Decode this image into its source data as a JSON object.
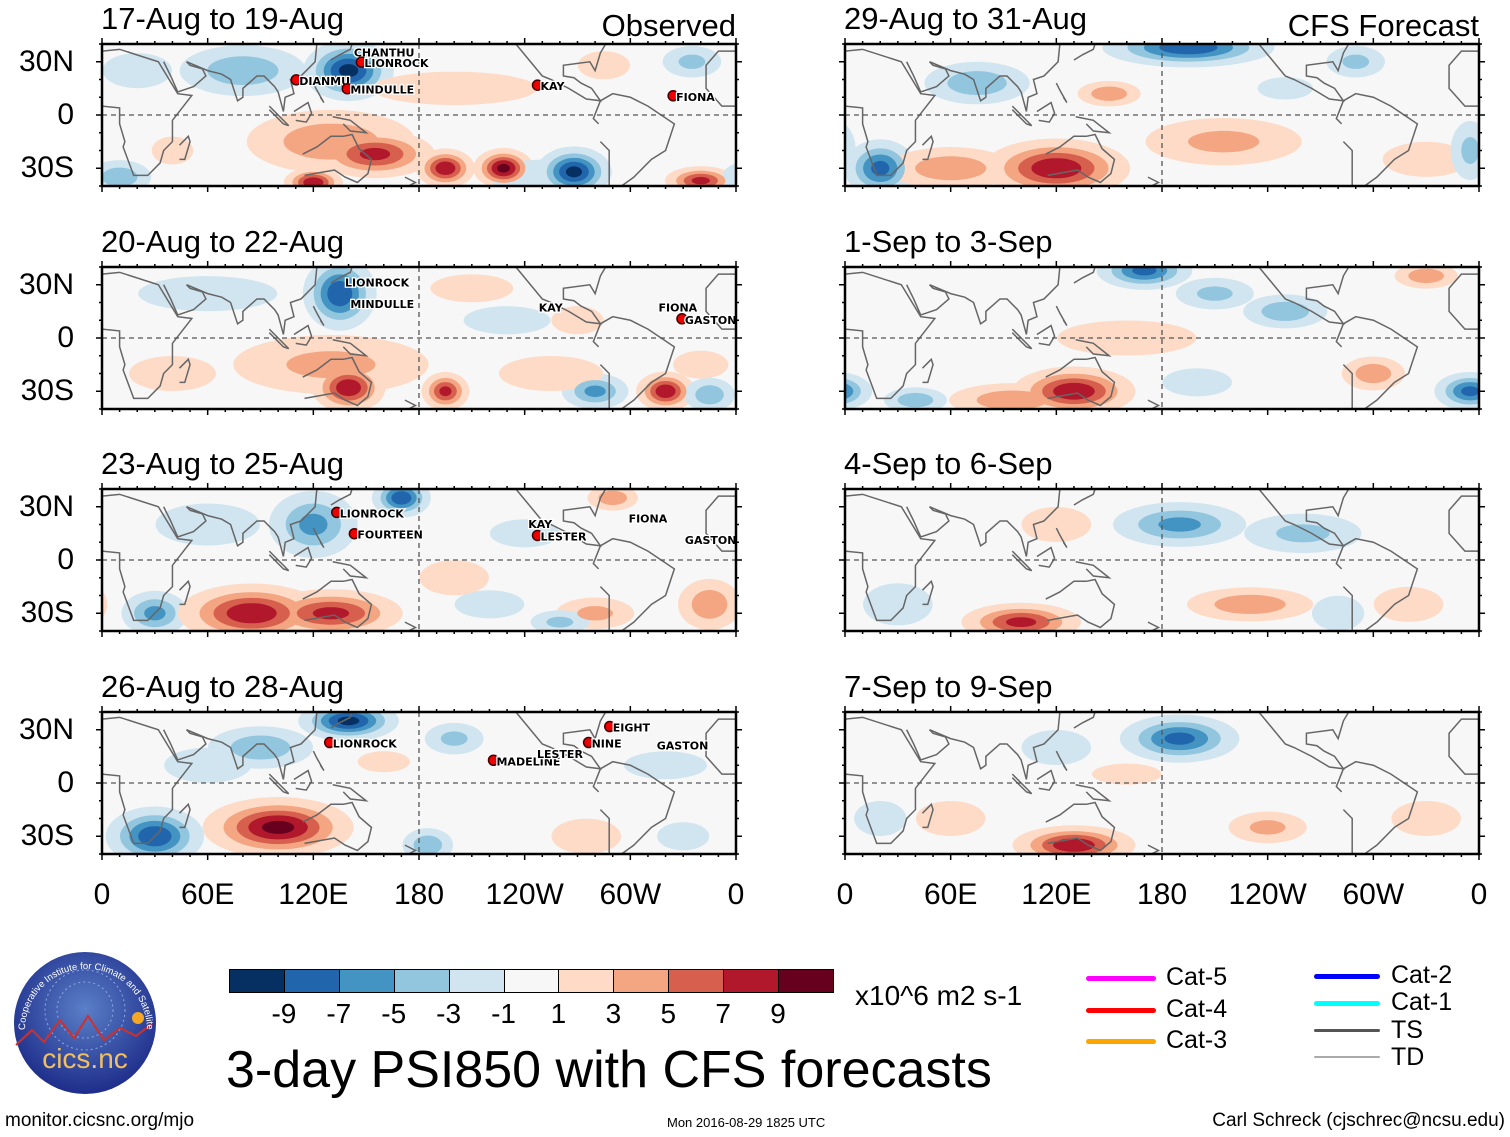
{
  "chart_data": {
    "type": "heatmap",
    "title": "3-day PSI850 with CFS forecasts",
    "units": "x10^6 m2 s-1",
    "lat_ticks": [
      "30N",
      "0",
      "30S"
    ],
    "lon_ticks": [
      "0",
      "60E",
      "120E",
      "180",
      "120W",
      "60W",
      "0"
    ],
    "lat_range": [
      -40,
      40
    ],
    "lon_range": [
      0,
      360
    ],
    "columns": [
      "Observed",
      "CFS Forecast"
    ],
    "panels": [
      {
        "title": "17-Aug to 19-Aug",
        "corner": "Observed",
        "col": 0,
        "row": 0,
        "anomalies": [
          [
            140,
            25,
            -10,
            18,
            12
          ],
          [
            80,
            25,
            -5,
            30,
            12
          ],
          [
            20,
            25,
            -3,
            20,
            10
          ],
          [
            130,
            -15,
            5,
            40,
            15
          ],
          [
            155,
            -22,
            8,
            25,
            10
          ],
          [
            120,
            -38,
            9,
            12,
            6
          ],
          [
            195,
            -30,
            9,
            12,
            8
          ],
          [
            228,
            -30,
            10,
            12,
            8
          ],
          [
            268,
            -32,
            -10,
            15,
            10
          ],
          [
            250,
            -35,
            -3,
            30,
            10
          ],
          [
            340,
            -37,
            8,
            15,
            6
          ],
          [
            10,
            -35,
            -5,
            15,
            8
          ],
          [
            200,
            15,
            2,
            60,
            12
          ],
          [
            285,
            28,
            3,
            15,
            8
          ],
          [
            335,
            30,
            -4,
            15,
            8
          ],
          [
            40,
            -20,
            2,
            15,
            10
          ]
        ],
        "storms": [
          {
            "name": "CHANTHU",
            "lon": 143,
            "lat": 33,
            "marker": false
          },
          {
            "name": "LIONROCK",
            "lon": 149,
            "lat": 27,
            "marker": true
          },
          {
            "name": "DIANMU",
            "lon": 112,
            "lat": 17,
            "marker": true
          },
          {
            "name": "MINDULLE",
            "lon": 141,
            "lat": 12,
            "marker": true
          },
          {
            "name": "KAY",
            "lon": 249,
            "lat": 14,
            "marker": true
          },
          {
            "name": "FIONA",
            "lon": 326,
            "lat": 8,
            "marker": true
          }
        ]
      },
      {
        "title": "20-Aug to 22-Aug",
        "corner": "",
        "col": 0,
        "row": 1,
        "anomalies": [
          [
            135,
            25,
            -9,
            15,
            15
          ],
          [
            60,
            25,
            -3,
            40,
            10
          ],
          [
            140,
            -28,
            9,
            15,
            10
          ],
          [
            130,
            -15,
            4,
            50,
            15
          ],
          [
            195,
            -30,
            8,
            10,
            8
          ],
          [
            280,
            -30,
            -6,
            15,
            8
          ],
          [
            320,
            -30,
            9,
            12,
            8
          ],
          [
            345,
            -32,
            -5,
            12,
            8
          ],
          [
            255,
            -20,
            3,
            30,
            10
          ],
          [
            230,
            10,
            -3,
            25,
            8
          ],
          [
            270,
            10,
            3,
            15,
            8
          ],
          [
            340,
            -15,
            2,
            20,
            10
          ],
          [
            40,
            -20,
            3,
            25,
            10
          ],
          [
            210,
            28,
            2,
            30,
            10
          ]
        ],
        "storms": [
          {
            "name": "LIONROCK",
            "lon": 138,
            "lat": 29,
            "marker": false
          },
          {
            "name": "MINDULLE",
            "lon": 141,
            "lat": 17,
            "marker": false
          },
          {
            "name": "KAY",
            "lon": 248,
            "lat": 15,
            "marker": false
          },
          {
            "name": "FIONA",
            "lon": 316,
            "lat": 15,
            "marker": false
          },
          {
            "name": "GASTON",
            "lon": 331,
            "lat": 8,
            "marker": true
          }
        ]
      },
      {
        "title": "23-Aug to 25-Aug",
        "corner": "",
        "col": 0,
        "row": 2,
        "anomalies": [
          [
            120,
            20,
            -6,
            20,
            15
          ],
          [
            170,
            35,
            -9,
            12,
            8
          ],
          [
            30,
            -30,
            -6,
            15,
            10
          ],
          [
            85,
            -30,
            9,
            30,
            12
          ],
          [
            130,
            -30,
            8,
            30,
            10
          ],
          [
            280,
            -30,
            4,
            20,
            8
          ],
          [
            345,
            -25,
            5,
            15,
            12
          ],
          [
            220,
            -25,
            -3,
            20,
            8
          ],
          [
            240,
            15,
            -3,
            20,
            8
          ],
          [
            290,
            35,
            5,
            12,
            6
          ],
          [
            60,
            20,
            -3,
            30,
            12
          ],
          [
            200,
            -10,
            3,
            20,
            10
          ],
          [
            260,
            -35,
            -4,
            15,
            6
          ]
        ],
        "storms": [
          {
            "name": "LIONROCK",
            "lon": 135,
            "lat": 24,
            "marker": true
          },
          {
            "name": "FOURTEEN",
            "lon": 145,
            "lat": 12,
            "marker": true
          },
          {
            "name": "KAY",
            "lon": 242,
            "lat": 18,
            "marker": false
          },
          {
            "name": "LESTER",
            "lon": 249,
            "lat": 11,
            "marker": true
          },
          {
            "name": "FIONA",
            "lon": 299,
            "lat": 21,
            "marker": false
          },
          {
            "name": "GASTON",
            "lon": 331,
            "lat": 9,
            "marker": false
          }
        ]
      },
      {
        "title": "26-Aug to 28-Aug",
        "corner": "",
        "col": 0,
        "row": 3,
        "anomalies": [
          [
            140,
            35,
            -10,
            20,
            8
          ],
          [
            90,
            20,
            -5,
            25,
            10
          ],
          [
            30,
            -30,
            -9,
            20,
            12
          ],
          [
            100,
            -25,
            10,
            30,
            12
          ],
          [
            185,
            -35,
            -5,
            12,
            8
          ],
          [
            275,
            -30,
            3,
            20,
            10
          ],
          [
            160,
            12,
            3,
            15,
            6
          ],
          [
            200,
            25,
            -4,
            15,
            8
          ],
          [
            60,
            10,
            -3,
            25,
            10
          ],
          [
            320,
            10,
            -2,
            30,
            10
          ],
          [
            330,
            -30,
            -3,
            15,
            8
          ]
        ],
        "storms": [
          {
            "name": "LIONROCK",
            "lon": 131,
            "lat": 20,
            "marker": true
          },
          {
            "name": "MADELINE",
            "lon": 224,
            "lat": 10,
            "marker": true
          },
          {
            "name": "LESTER",
            "lon": 247,
            "lat": 14,
            "marker": false
          },
          {
            "name": "NINE",
            "lon": 278,
            "lat": 20,
            "marker": true
          },
          {
            "name": "EIGHT",
            "lon": 290,
            "lat": 29,
            "marker": true
          },
          {
            "name": "GASTON",
            "lon": 315,
            "lat": 19,
            "marker": false
          }
        ]
      },
      {
        "title": "29-Aug to 31-Aug",
        "corner": "CFS Forecast",
        "col": 1,
        "row": 0,
        "anomalies": [
          [
            195,
            38,
            -9,
            35,
            8
          ],
          [
            75,
            18,
            -5,
            25,
            10
          ],
          [
            150,
            12,
            5,
            15,
            6
          ],
          [
            20,
            -30,
            -8,
            15,
            12
          ],
          [
            120,
            -30,
            9,
            30,
            12
          ],
          [
            60,
            -30,
            5,
            30,
            10
          ],
          [
            215,
            -15,
            4,
            40,
            12
          ],
          [
            330,
            -25,
            3,
            25,
            10
          ],
          [
            355,
            -20,
            -4,
            10,
            15
          ],
          [
            290,
            30,
            -4,
            15,
            8
          ],
          [
            250,
            15,
            -2,
            20,
            8
          ]
        ],
        "storms": []
      },
      {
        "title": "1-Sep to 3-Sep",
        "corner": "",
        "col": 1,
        "row": 1,
        "anomalies": [
          [
            170,
            38,
            -8,
            20,
            8
          ],
          [
            210,
            25,
            -4,
            20,
            8
          ],
          [
            250,
            15,
            -5,
            20,
            8
          ],
          [
            130,
            -30,
            9,
            25,
            10
          ],
          [
            95,
            -35,
            5,
            30,
            8
          ],
          [
            40,
            -35,
            -5,
            15,
            6
          ],
          [
            355,
            -30,
            -8,
            15,
            8
          ],
          [
            300,
            -20,
            5,
            15,
            8
          ],
          [
            200,
            -25,
            -3,
            20,
            8
          ],
          [
            330,
            35,
            5,
            15,
            6
          ],
          [
            160,
            0,
            3,
            40,
            10
          ]
        ],
        "storms": []
      },
      {
        "title": "4-Sep to 6-Sep",
        "corner": "",
        "col": 1,
        "row": 2,
        "anomalies": [
          [
            190,
            20,
            -6,
            30,
            10
          ],
          [
            260,
            15,
            -4,
            30,
            10
          ],
          [
            120,
            20,
            3,
            20,
            10
          ],
          [
            100,
            -35,
            8,
            25,
            8
          ],
          [
            230,
            -25,
            5,
            30,
            8
          ],
          [
            30,
            -25,
            -3,
            20,
            12
          ],
          [
            320,
            -25,
            3,
            20,
            10
          ],
          [
            280,
            -30,
            -3,
            15,
            10
          ]
        ],
        "storms": []
      },
      {
        "title": "7-Sep to 9-Sep",
        "corner": "",
        "col": 1,
        "row": 3,
        "anomalies": [
          [
            190,
            25,
            -8,
            25,
            10
          ],
          [
            120,
            20,
            -3,
            20,
            10
          ],
          [
            130,
            -35,
            9,
            25,
            8
          ],
          [
            240,
            -25,
            4,
            20,
            8
          ],
          [
            330,
            -20,
            3,
            20,
            10
          ],
          [
            60,
            -20,
            3,
            20,
            10
          ],
          [
            160,
            5,
            3,
            20,
            6
          ],
          [
            20,
            -20,
            -3,
            15,
            10
          ]
        ],
        "storms": []
      }
    ]
  },
  "colorbar": {
    "colors": [
      "#053061",
      "#2166ac",
      "#4393c3",
      "#92c5de",
      "#d1e5f0",
      "#f7f7f7",
      "#fddbc7",
      "#f4a582",
      "#d6604d",
      "#b2182b",
      "#67001f"
    ],
    "labels": [
      "-9",
      "-7",
      "-5",
      "-3",
      "-1",
      "1",
      "3",
      "5",
      "7",
      "9"
    ],
    "units": "x10^6 m2 s-1"
  },
  "legend": [
    {
      "label": "Cat-5",
      "color": "#ff00ff"
    },
    {
      "label": "Cat-4",
      "color": "#ff0000"
    },
    {
      "label": "Cat-3",
      "color": "#ffa500"
    },
    {
      "label": "Cat-2",
      "color": "#0000ff"
    },
    {
      "label": "Cat-1",
      "color": "#00ffff"
    },
    {
      "label": "TS",
      "color": "#555555"
    },
    {
      "label": "TD",
      "color": "#aaaaaa"
    }
  ],
  "logo": {
    "text": "cics.nc",
    "ring_text": "Cooperative Institute for Climate and Satellites"
  },
  "footer": {
    "left": "monitor.cicsnc.org/mjo",
    "center": "Mon 2016-08-29 1825 UTC",
    "right": "Carl Schreck (cjschrec@ncsu.edu)"
  }
}
